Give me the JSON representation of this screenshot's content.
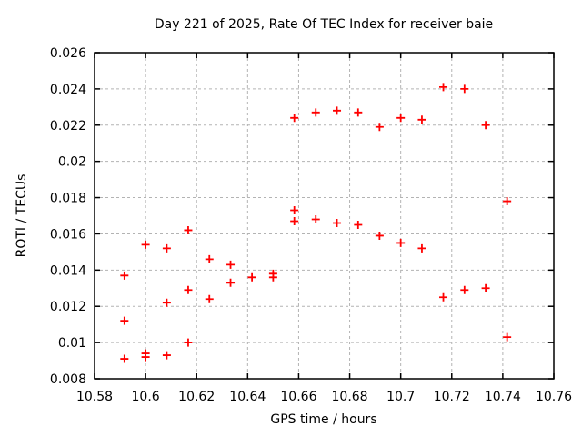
{
  "chart_data": {
    "type": "scatter",
    "title": "Day 221 of 2025, Rate Of TEC Index for receiver baie",
    "xlabel": "GPS time / hours",
    "ylabel": "ROTI / TECUs",
    "xlim": [
      10.58,
      10.76
    ],
    "ylim": [
      0.008,
      0.026
    ],
    "grid": true,
    "legend_position": "none",
    "marker": {
      "shape": "plus",
      "color": "#ff0000",
      "size": 9
    },
    "colors": {
      "background": "#ffffff",
      "border": "#000000",
      "grid": "#b3b3b3",
      "text": "#000000"
    },
    "xticks": [
      {
        "v": 10.58,
        "label": "10.58"
      },
      {
        "v": 10.6,
        "label": "10.6"
      },
      {
        "v": 10.62,
        "label": "10.62"
      },
      {
        "v": 10.64,
        "label": "10.64"
      },
      {
        "v": 10.66,
        "label": "10.66"
      },
      {
        "v": 10.68,
        "label": "10.68"
      },
      {
        "v": 10.7,
        "label": "10.7"
      },
      {
        "v": 10.72,
        "label": "10.72"
      },
      {
        "v": 10.74,
        "label": "10.74"
      },
      {
        "v": 10.76,
        "label": "10.76"
      }
    ],
    "yticks": [
      {
        "v": 0.008,
        "label": "0.008"
      },
      {
        "v": 0.01,
        "label": "0.01"
      },
      {
        "v": 0.012,
        "label": "0.012"
      },
      {
        "v": 0.014,
        "label": "0.014"
      },
      {
        "v": 0.016,
        "label": "0.016"
      },
      {
        "v": 0.018,
        "label": "0.018"
      },
      {
        "v": 0.02,
        "label": "0.02"
      },
      {
        "v": 0.022,
        "label": "0.022"
      },
      {
        "v": 0.024,
        "label": "0.024"
      },
      {
        "v": 0.026,
        "label": "0.026"
      }
    ],
    "series": [
      {
        "name": "ROTI",
        "points": [
          [
            10.5917,
            0.0137
          ],
          [
            10.5917,
            0.0112
          ],
          [
            10.5917,
            0.0091
          ],
          [
            10.6,
            0.0154
          ],
          [
            10.6,
            0.0094
          ],
          [
            10.6,
            0.0092
          ],
          [
            10.6083,
            0.0152
          ],
          [
            10.6083,
            0.0122
          ],
          [
            10.6083,
            0.0093
          ],
          [
            10.6167,
            0.0162
          ],
          [
            10.6167,
            0.0129
          ],
          [
            10.6167,
            0.01
          ],
          [
            10.625,
            0.0146
          ],
          [
            10.625,
            0.0124
          ],
          [
            10.6333,
            0.0143
          ],
          [
            10.6333,
            0.0133
          ],
          [
            10.6417,
            0.0136
          ],
          [
            10.65,
            0.0138
          ],
          [
            10.65,
            0.0136
          ],
          [
            10.6583,
            0.0224
          ],
          [
            10.6583,
            0.0173
          ],
          [
            10.6583,
            0.0167
          ],
          [
            10.6667,
            0.0227
          ],
          [
            10.6667,
            0.0168
          ],
          [
            10.675,
            0.0228
          ],
          [
            10.675,
            0.0166
          ],
          [
            10.6833,
            0.0227
          ],
          [
            10.6833,
            0.0165
          ],
          [
            10.6917,
            0.0219
          ],
          [
            10.6917,
            0.0159
          ],
          [
            10.7,
            0.0224
          ],
          [
            10.7,
            0.0155
          ],
          [
            10.7083,
            0.0223
          ],
          [
            10.7083,
            0.0152
          ],
          [
            10.7167,
            0.0241
          ],
          [
            10.7167,
            0.0125
          ],
          [
            10.725,
            0.024
          ],
          [
            10.725,
            0.0129
          ],
          [
            10.7333,
            0.022
          ],
          [
            10.7333,
            0.013
          ],
          [
            10.7417,
            0.0178
          ],
          [
            10.7417,
            0.0103
          ]
        ]
      }
    ]
  }
}
